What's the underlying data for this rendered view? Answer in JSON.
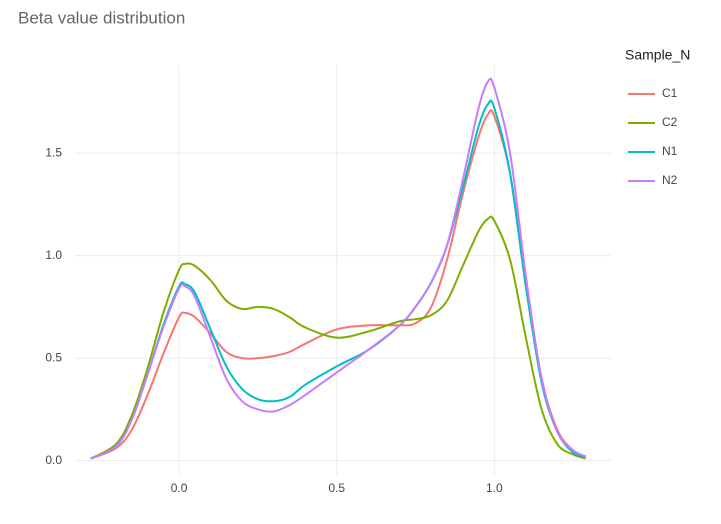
{
  "chart_data": {
    "type": "line",
    "title": "Beta value distribution",
    "legend_title": "Sample_N",
    "x": [
      -0.28,
      -0.2,
      -0.15,
      -0.1,
      -0.05,
      0,
      0.02,
      0.05,
      0.1,
      0.15,
      0.2,
      0.25,
      0.3,
      0.35,
      0.4,
      0.5,
      0.6,
      0.7,
      0.75,
      0.8,
      0.85,
      0.9,
      0.95,
      0.98,
      1.0,
      1.05,
      1.1,
      1.15,
      1.2,
      1.25,
      1.29
    ],
    "series": [
      {
        "name": "C1",
        "color": "#F8766D",
        "values": [
          0.01,
          0.06,
          0.15,
          0.32,
          0.52,
          0.7,
          0.72,
          0.7,
          0.62,
          0.53,
          0.5,
          0.5,
          0.51,
          0.53,
          0.57,
          0.64,
          0.66,
          0.66,
          0.67,
          0.75,
          0.98,
          1.3,
          1.58,
          1.69,
          1.68,
          1.4,
          0.85,
          0.4,
          0.15,
          0.05,
          0.02
        ]
      },
      {
        "name": "C2",
        "color": "#7CAE00",
        "values": [
          0.01,
          0.08,
          0.22,
          0.45,
          0.72,
          0.93,
          0.96,
          0.95,
          0.88,
          0.78,
          0.74,
          0.75,
          0.74,
          0.7,
          0.65,
          0.6,
          0.63,
          0.68,
          0.69,
          0.71,
          0.78,
          0.95,
          1.12,
          1.18,
          1.17,
          0.98,
          0.6,
          0.25,
          0.08,
          0.03,
          0.01
        ]
      },
      {
        "name": "N1",
        "color": "#00BFC4",
        "values": [
          0.01,
          0.07,
          0.2,
          0.42,
          0.66,
          0.85,
          0.86,
          0.82,
          0.64,
          0.46,
          0.35,
          0.3,
          0.29,
          0.31,
          0.37,
          0.46,
          0.54,
          0.66,
          0.75,
          0.87,
          1.05,
          1.33,
          1.63,
          1.74,
          1.72,
          1.4,
          0.85,
          0.38,
          0.14,
          0.04,
          0.02
        ]
      },
      {
        "name": "N2",
        "color": "#C77CFF",
        "values": [
          0.01,
          0.07,
          0.2,
          0.42,
          0.65,
          0.84,
          0.85,
          0.8,
          0.6,
          0.4,
          0.29,
          0.25,
          0.24,
          0.27,
          0.32,
          0.43,
          0.54,
          0.66,
          0.75,
          0.87,
          1.05,
          1.37,
          1.72,
          1.85,
          1.82,
          1.5,
          0.9,
          0.4,
          0.14,
          0.05,
          0.02
        ]
      }
    ],
    "xlim": [
      -0.33,
      1.37
    ],
    "ylim": [
      -0.07,
      1.93
    ],
    "xticks": [
      {
        "value": 0,
        "label": "0.0"
      },
      {
        "value": 0.5,
        "label": "0.5"
      },
      {
        "value": 1,
        "label": "1.0"
      }
    ],
    "yticks": [
      {
        "value": 0,
        "label": "0.0"
      },
      {
        "value": 0.5,
        "label": "0.5"
      },
      {
        "value": 1,
        "label": "1.0"
      },
      {
        "value": 1.5,
        "label": "1.5"
      }
    ],
    "grid": true
  }
}
